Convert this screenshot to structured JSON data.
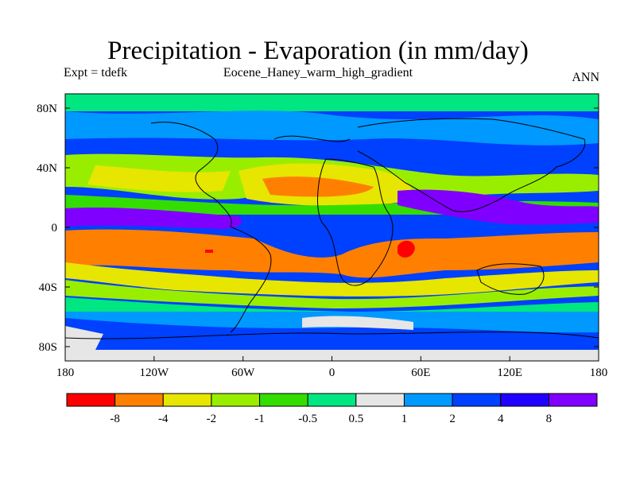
{
  "title": "Precipitation - Evaporation (in mm/day)",
  "subtitle_left": "Expt = tdefk",
  "subtitle_center": "Eocene_Haney_warm_high_gradient",
  "subtitle_right": "ANN",
  "lat_ticks": [
    "80N",
    "40N",
    "0",
    "40S",
    "80S"
  ],
  "lon_ticks": [
    "180",
    "120W",
    "60W",
    "0",
    "60E",
    "120E",
    "180"
  ],
  "colorbar": {
    "labels": [
      "-8",
      "-4",
      "-2",
      "-1",
      "-0.5",
      "0.5",
      "1",
      "2",
      "4",
      "8"
    ],
    "colors": [
      "#ff0000",
      "#ff8000",
      "#e6e600",
      "#99ee00",
      "#33dd00",
      "#00e680",
      "#e6e6e6",
      "#0099ff",
      "#0040ff",
      "#2000ff",
      "#8000ff"
    ]
  }
}
